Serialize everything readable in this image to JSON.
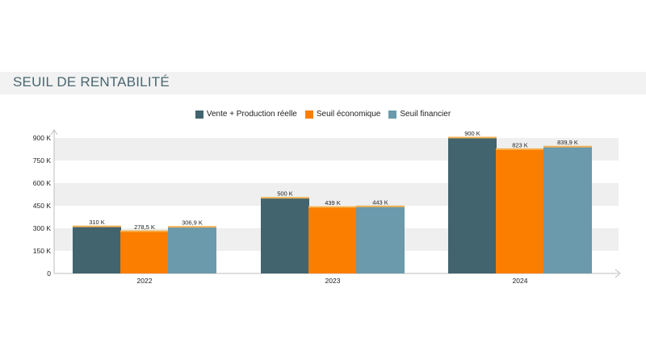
{
  "title": "SEUIL DE RENTABILITÉ",
  "colors": {
    "series_0": "#41646e",
    "series_1": "#fb7e00",
    "series_2": "#6a9aab",
    "cap": "#f3b356",
    "band": "#efefef",
    "title_band": "#f2f2f2"
  },
  "chart_data": {
    "type": "bar",
    "categories": [
      "2022",
      "2023",
      "2024"
    ],
    "series": [
      {
        "name": "Vente + Production réelle",
        "values": [
          310,
          500,
          900
        ],
        "labels": [
          "310 K",
          "500 K",
          "900 K"
        ]
      },
      {
        "name": "Seuil économique",
        "values": [
          278.5,
          439,
          823
        ],
        "labels": [
          "278,5 K",
          "439 K",
          "823 K"
        ]
      },
      {
        "name": "Seuil financier",
        "values": [
          306.9,
          443,
          839.9
        ],
        "labels": [
          "306,9 K",
          "443 K",
          "839,9 K"
        ]
      }
    ],
    "y_ticks": [
      0,
      150,
      300,
      450,
      600,
      750,
      900
    ],
    "y_tick_labels": [
      "0",
      "150 K",
      "300 K",
      "450 K",
      "600 K",
      "750 K",
      "900 K"
    ],
    "ylim": [
      0,
      900
    ],
    "legend_position": "top-center",
    "grid": "alternating bands"
  }
}
